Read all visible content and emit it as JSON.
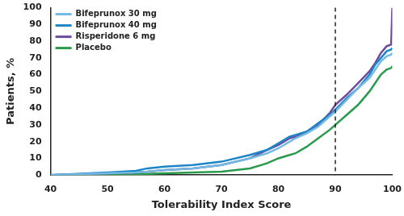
{
  "chart_data": {
    "type": "line",
    "x_label": "Tolerability Index Score",
    "y_label": "Patients, %",
    "x": [
      40,
      50,
      55,
      57,
      60,
      65,
      70,
      75,
      78,
      80,
      82,
      83,
      85,
      87,
      89,
      90,
      92,
      94,
      96,
      97,
      98,
      99,
      99.8,
      100
    ],
    "series": [
      {
        "name": "Bifeprunox 30 mg",
        "color": "#74b9e2",
        "values": [
          0,
          1,
          1.5,
          2,
          3,
          4,
          6,
          10,
          13,
          16,
          20,
          22,
          25,
          29,
          35,
          38,
          45,
          52,
          58,
          63,
          68,
          71,
          72,
          73
        ]
      },
      {
        "name": "Bifeprunox 40 mg",
        "color": "#1a86c8",
        "values": [
          0,
          1.5,
          2.5,
          4,
          5,
          6,
          8,
          12,
          15,
          19,
          23,
          24,
          26,
          31,
          36,
          39,
          46,
          52,
          60,
          66,
          70,
          74,
          75,
          76
        ]
      },
      {
        "name": "Risperidone 6 mg",
        "color": "#6b4c9e",
        "values": [
          0,
          1,
          1.5,
          2,
          3,
          4,
          6,
          10,
          15,
          18,
          22,
          23,
          26,
          30,
          37,
          42,
          48,
          55,
          62,
          67,
          73,
          77,
          78,
          100
        ]
      },
      {
        "name": "Placebo",
        "color": "#2a9a4c",
        "values": [
          0,
          0.3,
          0.5,
          0.7,
          1,
          1.5,
          2,
          4,
          7,
          10,
          12,
          13,
          17,
          22,
          27,
          30,
          36,
          42,
          50,
          55,
          60,
          63,
          64,
          65
        ]
      }
    ],
    "xlim": [
      40,
      100
    ],
    "xticks": [
      40,
      50,
      60,
      70,
      80,
      90,
      100
    ],
    "ylim": [
      0,
      100
    ],
    "yticks": [
      0,
      10,
      20,
      30,
      40,
      50,
      60,
      70,
      80,
      90,
      100
    ],
    "reference_lines": [
      {
        "x": 90,
        "line_style": "dashed"
      }
    ],
    "grid": false,
    "legend": "top-left"
  }
}
